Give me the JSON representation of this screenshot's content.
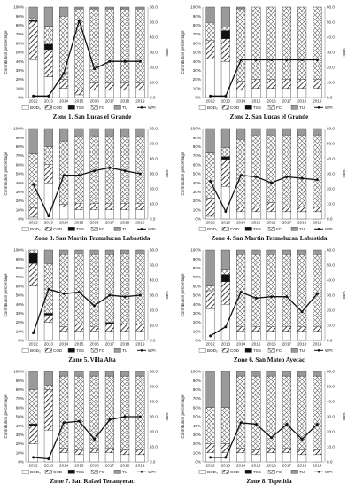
{
  "common": {
    "categories": [
      "2012",
      "2013",
      "2014",
      "2015",
      "2016",
      "2017",
      "2018",
      "2019"
    ],
    "stack_order": [
      "BOD5",
      "COD",
      "TSS",
      "FC",
      "TU"
    ],
    "legend": {
      "BOD5": "BOD₅",
      "COD": "COD",
      "TSS": "TSS",
      "FC": "FC",
      "TU": "TU",
      "WPI": "WPI"
    },
    "ylabel_left": "Contribution percentage",
    "ylabel_right": "WPI",
    "left_ticks": [
      "0%",
      "10%",
      "20%",
      "30%",
      "40%",
      "50%",
      "60%",
      "70%",
      "80%",
      "90%",
      "100%"
    ],
    "right_ticks": [
      "0.0",
      "10.0",
      "20.0",
      "30.0",
      "40.0",
      "50.0",
      "60.0"
    ],
    "ylim_right": [
      0,
      60
    ],
    "colors": {
      "bar_border": "#333333",
      "TSS": "#111111",
      "TU": "#9a9a9a",
      "line": "#111111",
      "axis": "#888888"
    }
  },
  "chart_data": [
    {
      "type": "bar",
      "stacked": true,
      "title": "Zone 1. San Lucas el Grande",
      "categories": [
        "2012",
        "2013",
        "2014",
        "2015",
        "2016",
        "2017",
        "2018",
        "2019"
      ],
      "series": [
        {
          "name": "BOD₅",
          "values": [
            42,
            23,
            10,
            3,
            8,
            8,
            8,
            8
          ]
        },
        {
          "name": "COD",
          "values": [
            42,
            30,
            10,
            5,
            8,
            8,
            8,
            8
          ]
        },
        {
          "name": "TSS",
          "values": [
            2,
            6,
            0,
            0,
            0,
            0,
            0,
            0
          ]
        },
        {
          "name": "FC",
          "values": [
            2,
            20,
            70,
            90,
            82,
            82,
            82,
            82
          ]
        },
        {
          "name": "TU",
          "values": [
            12,
            21,
            10,
            2,
            2,
            2,
            2,
            2
          ]
        }
      ],
      "line": {
        "name": "WPI",
        "values": [
          1.0,
          1.0,
          16.0,
          51.0,
          19.0,
          24.0,
          24.0,
          24.0
        ]
      }
    },
    {
      "type": "bar",
      "stacked": true,
      "title": "Zone 2. San Lucas el Grande",
      "categories": [
        "2012",
        "2013",
        "2014",
        "2015",
        "2016",
        "2017",
        "2018",
        "2019"
      ],
      "series": [
        {
          "name": "BOD₅",
          "values": [
            43,
            40,
            8,
            10,
            10,
            10,
            10,
            10
          ]
        },
        {
          "name": "COD",
          "values": [
            20,
            25,
            10,
            10,
            10,
            10,
            10,
            10
          ]
        },
        {
          "name": "TSS",
          "values": [
            0,
            9,
            0,
            0,
            0,
            0,
            0,
            0
          ]
        },
        {
          "name": "FC",
          "values": [
            20,
            4,
            80,
            80,
            80,
            80,
            80,
            80
          ]
        },
        {
          "name": "TU",
          "values": [
            17,
            22,
            2,
            0,
            0,
            0,
            0,
            0
          ]
        }
      ],
      "line": {
        "name": "WPI",
        "values": [
          1.0,
          1.0,
          25.0,
          25.0,
          25.0,
          25.0,
          25.0,
          25.0
        ]
      }
    },
    {
      "type": "bar",
      "stacked": true,
      "title": "Zone 3. San Martin Texmelucan Labastida",
      "categories": [
        "2012",
        "2013",
        "2014",
        "2015",
        "2016",
        "2017",
        "2018",
        "2019"
      ],
      "series": [
        {
          "name": "BOD₅",
          "values": [
            2,
            40,
            13,
            10,
            10,
            10,
            10,
            10
          ]
        },
        {
          "name": "COD",
          "values": [
            10,
            20,
            3,
            7,
            7,
            7,
            7,
            7
          ]
        },
        {
          "name": "TSS",
          "values": [
            0,
            0,
            0,
            0,
            0,
            0,
            0,
            0
          ]
        },
        {
          "name": "FC",
          "values": [
            60,
            20,
            70,
            75,
            75,
            75,
            75,
            75
          ]
        },
        {
          "name": "TU",
          "values": [
            28,
            20,
            14,
            8,
            8,
            8,
            8,
            8
          ]
        }
      ],
      "line": {
        "name": "WPI",
        "values": [
          23.0,
          2.0,
          29.0,
          29.0,
          32.0,
          34.0,
          32.0,
          30.0
        ]
      }
    },
    {
      "type": "bar",
      "stacked": true,
      "title": "Zone 4. San Martin Texmelucan Labastida",
      "categories": [
        "2012",
        "2013",
        "2014",
        "2015",
        "2016",
        "2017",
        "2018",
        "2019"
      ],
      "series": [
        {
          "name": "BOD₅",
          "values": [
            3,
            36,
            8,
            8,
            8,
            8,
            8,
            8
          ]
        },
        {
          "name": "COD",
          "values": [
            20,
            30,
            5,
            5,
            10,
            5,
            5,
            5
          ]
        },
        {
          "name": "TSS",
          "values": [
            0,
            3,
            0,
            0,
            0,
            0,
            0,
            0
          ]
        },
        {
          "name": "FC",
          "values": [
            50,
            10,
            75,
            80,
            75,
            80,
            80,
            80
          ]
        },
        {
          "name": "TU",
          "values": [
            27,
            21,
            12,
            7,
            7,
            7,
            7,
            7
          ]
        }
      ],
      "line": {
        "name": "WPI",
        "values": [
          25.0,
          5.0,
          29.0,
          28.0,
          24.0,
          28.0,
          27.0,
          26.0
        ]
      }
    },
    {
      "type": "bar",
      "stacked": true,
      "title": "Zone 5. Villa Alta",
      "categories": [
        "2012",
        "2013",
        "2014",
        "2015",
        "2016",
        "2017",
        "2018",
        "2019"
      ],
      "series": [
        {
          "name": "BOD₅",
          "values": [
            60,
            20,
            10,
            10,
            10,
            10,
            10,
            10
          ]
        },
        {
          "name": "COD",
          "values": [
            25,
            8,
            5,
            8,
            5,
            8,
            8,
            8
          ]
        },
        {
          "name": "TSS",
          "values": [
            12,
            2,
            0,
            0,
            0,
            2,
            0,
            0
          ]
        },
        {
          "name": "FC",
          "values": [
            3,
            55,
            80,
            78,
            80,
            75,
            78,
            78
          ]
        },
        {
          "name": "TU",
          "values": [
            0,
            15,
            5,
            4,
            5,
            5,
            4,
            4
          ]
        }
      ],
      "line": {
        "name": "WPI",
        "values": [
          5.0,
          34.0,
          31.0,
          32.0,
          23.0,
          30.0,
          29.0,
          30.0
        ]
      }
    },
    {
      "type": "bar",
      "stacked": true,
      "title": "Zone 6. San Mateo Ayecac",
      "categories": [
        "2012",
        "2013",
        "2014",
        "2015",
        "2016",
        "2017",
        "2018",
        "2019"
      ],
      "series": [
        {
          "name": "BOD₅",
          "values": [
            35,
            40,
            10,
            10,
            10,
            10,
            10,
            10
          ]
        },
        {
          "name": "COD",
          "values": [
            20,
            25,
            5,
            5,
            5,
            5,
            5,
            5
          ]
        },
        {
          "name": "TSS",
          "values": [
            0,
            8,
            0,
            0,
            0,
            0,
            0,
            0
          ]
        },
        {
          "name": "FC",
          "values": [
            5,
            5,
            80,
            80,
            80,
            80,
            80,
            80
          ]
        },
        {
          "name": "TU",
          "values": [
            40,
            22,
            5,
            5,
            5,
            5,
            5,
            5
          ]
        }
      ],
      "line": {
        "name": "WPI",
        "values": [
          3.0,
          9.0,
          32.0,
          28.0,
          29.0,
          29.0,
          19.0,
          31.0
        ]
      }
    },
    {
      "type": "bar",
      "stacked": true,
      "title": "Zone 7. San Rafael Tenanyecac",
      "categories": [
        "2012",
        "2013",
        "2014",
        "2015",
        "2016",
        "2017",
        "2018",
        "2019"
      ],
      "series": [
        {
          "name": "BOD₅",
          "values": [
            20,
            35,
            10,
            8,
            10,
            10,
            8,
            8
          ]
        },
        {
          "name": "COD",
          "values": [
            20,
            45,
            5,
            5,
            5,
            5,
            5,
            5
          ]
        },
        {
          "name": "TSS",
          "values": [
            2,
            0,
            0,
            0,
            0,
            0,
            0,
            0
          ]
        },
        {
          "name": "FC",
          "values": [
            38,
            5,
            80,
            82,
            80,
            80,
            82,
            82
          ]
        },
        {
          "name": "TU",
          "values": [
            20,
            15,
            5,
            5,
            5,
            5,
            5,
            5
          ]
        }
      ],
      "line": {
        "name": "WPI",
        "values": [
          3.0,
          2.0,
          26.0,
          27.0,
          15.0,
          28.0,
          30.0,
          30.0
        ]
      }
    },
    {
      "type": "bar",
      "stacked": true,
      "title": "Zone 8. Tepetitla",
      "categories": [
        "2012",
        "2013",
        "2014",
        "2015",
        "2016",
        "2017",
        "2018",
        "2019"
      ],
      "series": [
        {
          "name": "BOD₅",
          "values": [
            10,
            10,
            10,
            8,
            10,
            10,
            8,
            8
          ]
        },
        {
          "name": "COD",
          "values": [
            10,
            10,
            5,
            5,
            5,
            5,
            5,
            5
          ]
        },
        {
          "name": "TSS",
          "values": [
            0,
            0,
            0,
            0,
            0,
            0,
            0,
            0
          ]
        },
        {
          "name": "FC",
          "values": [
            40,
            40,
            80,
            82,
            80,
            80,
            82,
            82
          ]
        },
        {
          "name": "TU",
          "values": [
            40,
            40,
            5,
            5,
            5,
            5,
            5,
            5
          ]
        }
      ],
      "line": {
        "name": "WPI",
        "values": [
          3.0,
          3.0,
          26.0,
          25.0,
          16.0,
          25.0,
          15.0,
          25.0
        ]
      }
    }
  ]
}
